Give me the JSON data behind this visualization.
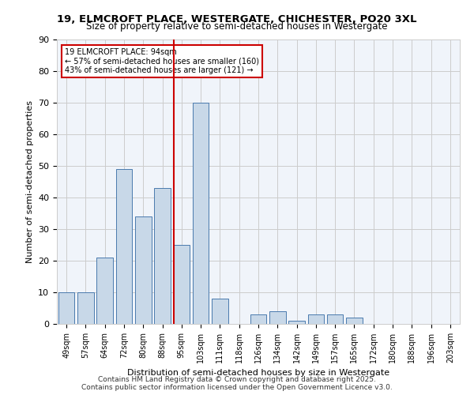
{
  "title1": "19, ELMCROFT PLACE, WESTERGATE, CHICHESTER, PO20 3XL",
  "title2": "Size of property relative to semi-detached houses in Westergate",
  "xlabel": "Distribution of semi-detached houses by size in Westergate",
  "ylabel": "Number of semi-detached properties",
  "bar_labels": [
    "49sqm",
    "57sqm",
    "64sqm",
    "72sqm",
    "80sqm",
    "88sqm",
    "95sqm",
    "103sqm",
    "111sqm",
    "118sqm",
    "126sqm",
    "134sqm",
    "142sqm",
    "149sqm",
    "157sqm",
    "165sqm",
    "172sqm",
    "180sqm",
    "188sqm",
    "196sqm",
    "203sqm"
  ],
  "bar_values": [
    10,
    10,
    21,
    49,
    34,
    43,
    25,
    70,
    8,
    0,
    3,
    4,
    1,
    3,
    3,
    2,
    0,
    0,
    0,
    0,
    0
  ],
  "property_value": 94,
  "property_label": "19 ELMCROFT PLACE: 94sqm",
  "pct_smaller": 57,
  "pct_smaller_count": 160,
  "pct_larger": 43,
  "pct_larger_count": 121,
  "bar_color_fill": "#c8d8e8",
  "bar_color_edge": "#4a7aad",
  "vline_color": "#cc0000",
  "vline_x": 6.0,
  "annotation_box_edge": "#cc0000",
  "grid_color": "#cccccc",
  "bg_color": "#f0f4fa",
  "footer": "Contains HM Land Registry data © Crown copyright and database right 2025.\nContains public sector information licensed under the Open Government Licence v3.0.",
  "ylim": [
    0,
    90
  ],
  "yticks": [
    0,
    10,
    20,
    30,
    40,
    50,
    60,
    70,
    80,
    90
  ]
}
